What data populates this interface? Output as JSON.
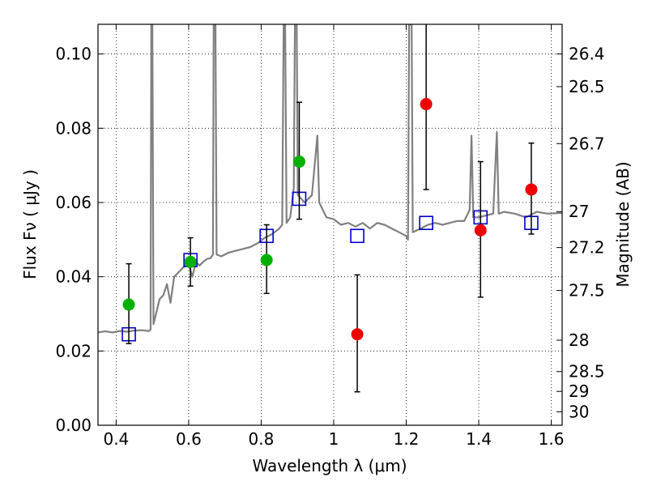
{
  "chart_data": {
    "type": "scatter",
    "title": "",
    "xlabel": "Wavelength  λ (μm)",
    "ylabel": "Flux  Fν  ( μJy )",
    "y2label": "Magnitude (AB)",
    "xlim": [
      0.35,
      1.63
    ],
    "ylim": [
      0.0,
      0.108
    ],
    "x_ticks": [
      0.4,
      0.6,
      0.8,
      1.0,
      1.2,
      1.4,
      1.6
    ],
    "x_tick_labels": [
      "0.4",
      "0.6",
      "0.8",
      "1",
      "1.2",
      "1.4",
      "1.6"
    ],
    "y_ticks": [
      0.0,
      0.02,
      0.04,
      0.06,
      0.08,
      0.1
    ],
    "y_tick_labels": [
      "0.00",
      "0.02",
      "0.04",
      "0.06",
      "0.08",
      "0.10"
    ],
    "y2_ticks": [
      {
        "label": "26.4",
        "mag": 26.4
      },
      {
        "label": "26.5",
        "mag": 26.5
      },
      {
        "label": "26.7",
        "mag": 26.7
      },
      {
        "label": "27",
        "mag": 27.0
      },
      {
        "label": "27.2",
        "mag": 27.2
      },
      {
        "label": "27.5",
        "mag": 27.5
      },
      {
        "label": "28",
        "mag": 28.0
      },
      {
        "label": "28.5",
        "mag": 28.5
      },
      {
        "label": "29",
        "mag": 29.0
      },
      {
        "label": "30",
        "mag": 30.0
      }
    ],
    "grid": true,
    "series": [
      {
        "kind": "line",
        "color": "#808080",
        "points": [
          [
            0.35,
            0.025
          ],
          [
            0.37,
            0.0253
          ],
          [
            0.39,
            0.025
          ],
          [
            0.41,
            0.0254
          ],
          [
            0.43,
            0.0252
          ],
          [
            0.45,
            0.0255
          ],
          [
            0.47,
            0.0256
          ],
          [
            0.49,
            0.0254
          ],
          [
            0.495,
            0.0258
          ],
          [
            0.497,
            0.108
          ],
          [
            0.5,
            0.108
          ],
          [
            0.503,
            0.0272
          ],
          [
            0.51,
            0.03
          ],
          [
            0.52,
            0.034
          ],
          [
            0.53,
            0.035
          ],
          [
            0.54,
            0.038
          ],
          [
            0.55,
            0.033
          ],
          [
            0.56,
            0.04
          ],
          [
            0.57,
            0.041
          ],
          [
            0.58,
            0.042
          ],
          [
            0.59,
            0.043
          ],
          [
            0.6,
            0.0435
          ],
          [
            0.61,
            0.04
          ],
          [
            0.62,
            0.044
          ],
          [
            0.63,
            0.043
          ],
          [
            0.64,
            0.044
          ],
          [
            0.65,
            0.0448
          ],
          [
            0.66,
            0.045
          ],
          [
            0.667,
            0.046
          ],
          [
            0.669,
            0.108
          ],
          [
            0.674,
            0.108
          ],
          [
            0.677,
            0.046
          ],
          [
            0.69,
            0.0455
          ],
          [
            0.71,
            0.0465
          ],
          [
            0.73,
            0.047
          ],
          [
            0.75,
            0.0475
          ],
          [
            0.77,
            0.048
          ],
          [
            0.79,
            0.049
          ],
          [
            0.81,
            0.0505
          ],
          [
            0.83,
            0.0515
          ],
          [
            0.85,
            0.053
          ],
          [
            0.858,
            0.054
          ],
          [
            0.862,
            0.108
          ],
          [
            0.866,
            0.108
          ],
          [
            0.87,
            0.0545
          ],
          [
            0.88,
            0.056
          ],
          [
            0.89,
            0.064
          ],
          [
            0.893,
            0.108
          ],
          [
            0.898,
            0.108
          ],
          [
            0.901,
            0.062
          ],
          [
            0.92,
            0.06
          ],
          [
            0.94,
            0.062
          ],
          [
            0.955,
            0.078
          ],
          [
            0.96,
            0.06
          ],
          [
            0.98,
            0.056
          ],
          [
            1.0,
            0.0555
          ],
          [
            1.02,
            0.054
          ],
          [
            1.04,
            0.0545
          ],
          [
            1.06,
            0.0535
          ],
          [
            1.08,
            0.0545
          ],
          [
            1.1,
            0.053
          ],
          [
            1.12,
            0.0545
          ],
          [
            1.14,
            0.054
          ],
          [
            1.16,
            0.053
          ],
          [
            1.18,
            0.052
          ],
          [
            1.2,
            0.051
          ],
          [
            1.205,
            0.05
          ],
          [
            1.208,
            0.108
          ],
          [
            1.215,
            0.108
          ],
          [
            1.218,
            0.052
          ],
          [
            1.24,
            0.053
          ],
          [
            1.26,
            0.054
          ],
          [
            1.28,
            0.0545
          ],
          [
            1.3,
            0.054
          ],
          [
            1.32,
            0.0545
          ],
          [
            1.34,
            0.055
          ],
          [
            1.36,
            0.055
          ],
          [
            1.375,
            0.058
          ],
          [
            1.38,
            0.078
          ],
          [
            1.385,
            0.056
          ],
          [
            1.4,
            0.056
          ],
          [
            1.42,
            0.0565
          ],
          [
            1.44,
            0.057
          ],
          [
            1.45,
            0.079
          ],
          [
            1.455,
            0.057
          ],
          [
            1.47,
            0.0575
          ],
          [
            1.5,
            0.057
          ],
          [
            1.53,
            0.056
          ],
          [
            1.56,
            0.0575
          ],
          [
            1.59,
            0.057
          ],
          [
            1.63,
            0.0572
          ]
        ]
      },
      {
        "kind": "open-square",
        "color": "#0000cc",
        "points": [
          [
            0.435,
            0.0245
          ],
          [
            0.605,
            0.0445
          ],
          [
            0.815,
            0.051
          ],
          [
            0.905,
            0.061
          ],
          [
            1.065,
            0.051
          ],
          [
            1.255,
            0.0545
          ],
          [
            1.405,
            0.056
          ],
          [
            1.545,
            0.0545
          ]
        ]
      },
      {
        "kind": "filled-circle",
        "color": "#00b000",
        "points": [
          [
            0.435,
            0.0325,
            0.022,
            0.0435
          ],
          [
            0.605,
            0.044,
            0.0375,
            0.0505
          ],
          [
            0.815,
            0.0445,
            0.0355,
            0.054
          ],
          [
            0.905,
            0.071,
            0.0555,
            0.087
          ]
        ]
      },
      {
        "kind": "filled-circle",
        "color": "#ee0000",
        "points": [
          [
            1.065,
            0.0245,
            0.009,
            0.0405
          ],
          [
            1.255,
            0.0865,
            0.0635,
            0.11
          ],
          [
            1.405,
            0.0525,
            0.0345,
            0.071
          ],
          [
            1.545,
            0.0635,
            0.0515,
            0.076
          ]
        ]
      }
    ]
  }
}
